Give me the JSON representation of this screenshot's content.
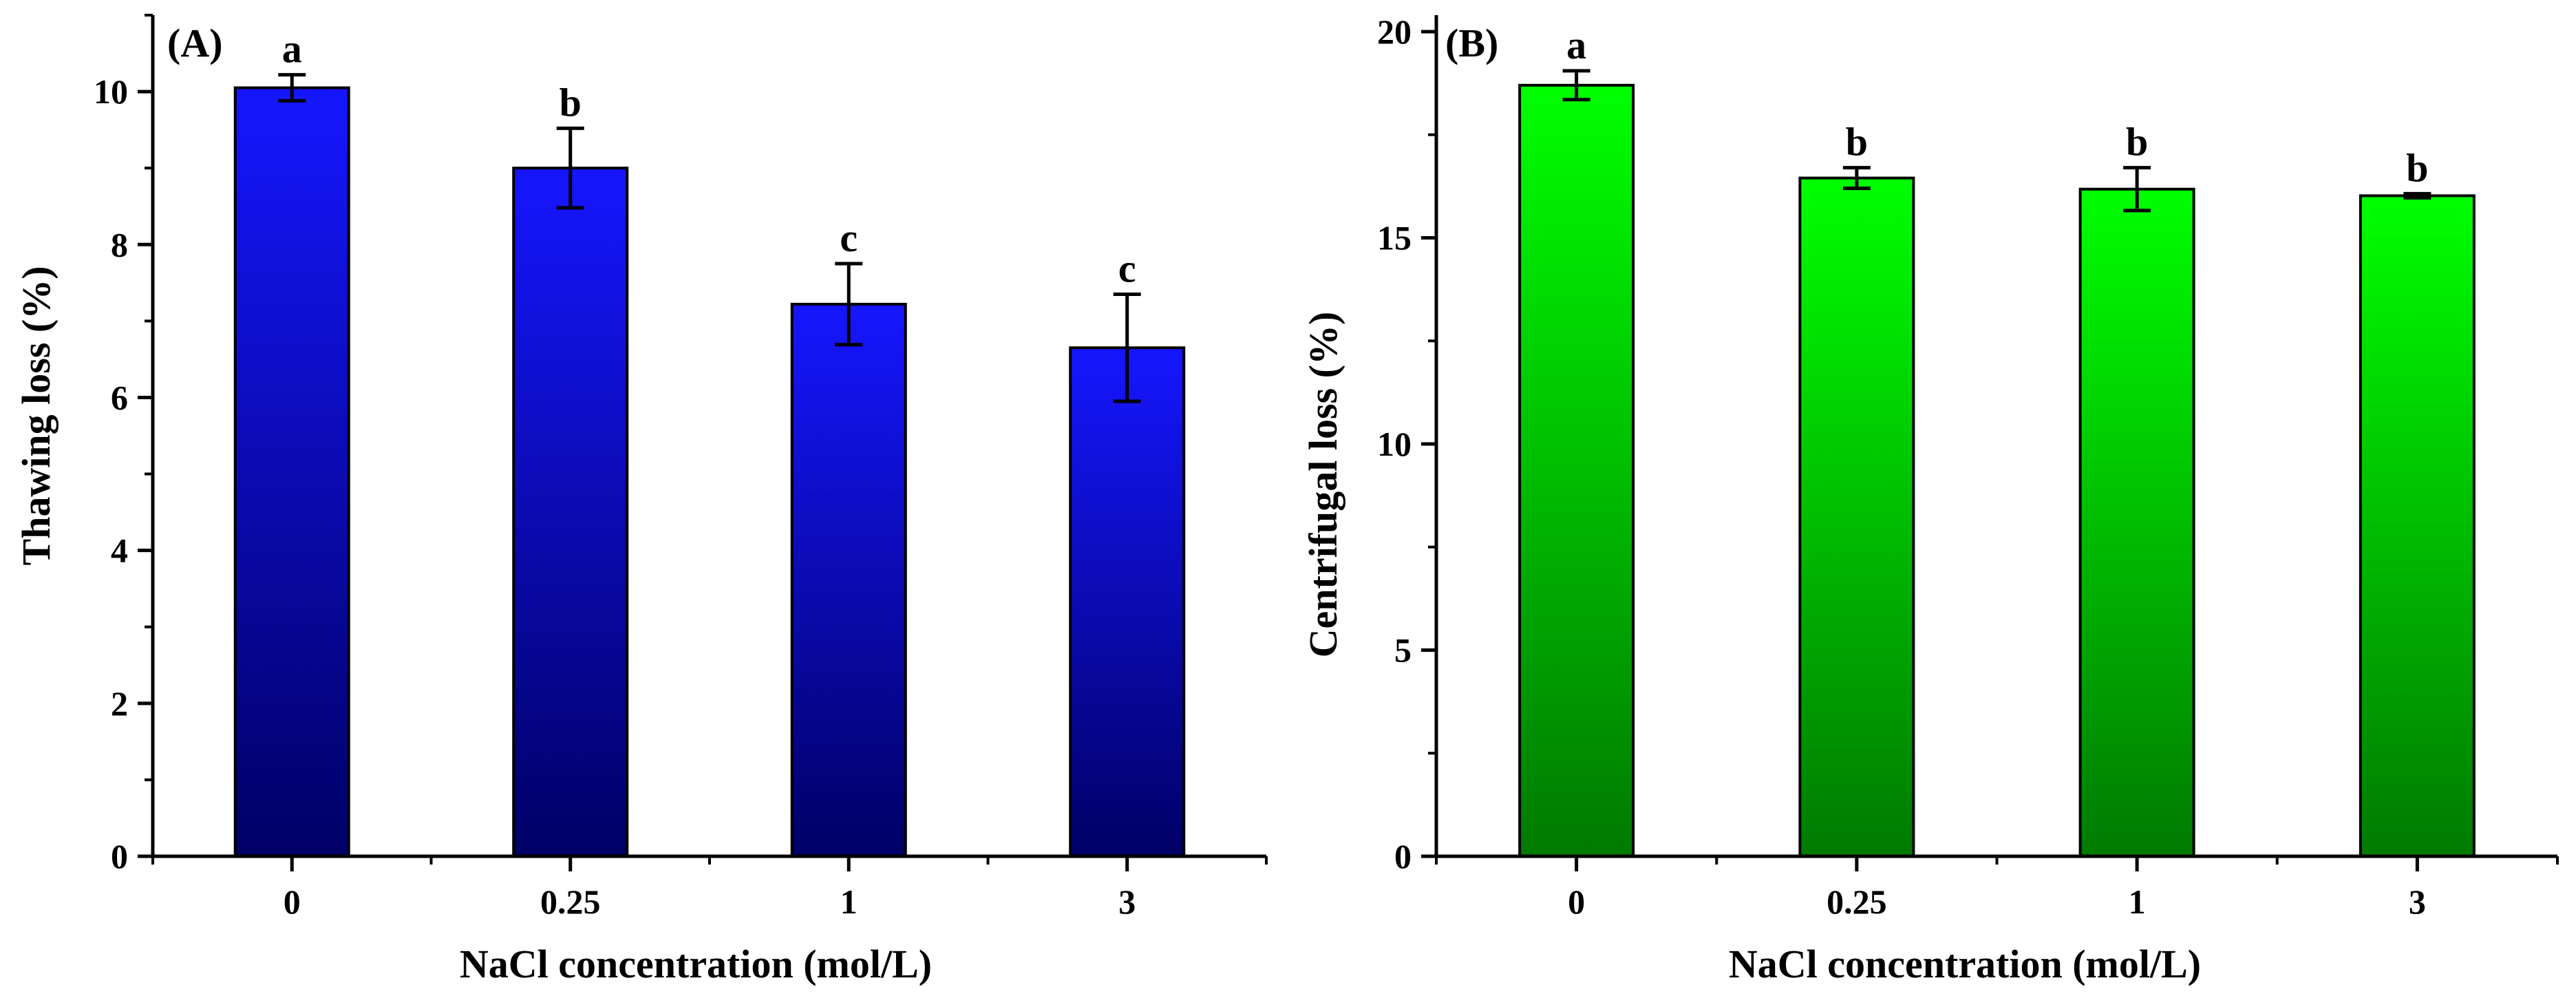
{
  "colors": {
    "panelA_top": "#1616ff",
    "panelA_bottom": "#000066",
    "panelB_top": "#00ff00",
    "panelB_bottom": "#007a00",
    "axis": "#000000"
  },
  "chart_data": [
    {
      "type": "bar",
      "panel": "A",
      "panel_label": "(A)",
      "title": "",
      "xlabel": "NaCl concentration (mol/L)",
      "ylabel": "Thawing loss (%)",
      "categories": [
        "0",
        "0.25",
        "1",
        "3"
      ],
      "values": [
        10.05,
        9.0,
        7.22,
        6.65
      ],
      "errors": [
        0.17,
        0.52,
        0.53,
        0.7
      ],
      "significance": [
        "a",
        "b",
        "c",
        "c"
      ],
      "ylim": [
        0,
        11
      ],
      "yticks": [
        0,
        2,
        4,
        6,
        8,
        10
      ],
      "ytick_labels": [
        "0",
        "2",
        "4",
        "6",
        "8",
        "10"
      ],
      "y_minor_step": 1,
      "gradient": [
        "#1616ff",
        "#000066"
      ]
    },
    {
      "type": "bar",
      "panel": "B",
      "panel_label": "(B)",
      "title": "",
      "xlabel": "NaCl concentration (mol/L)",
      "ylabel": "Centrifugal loss (%)",
      "categories": [
        "0",
        "0.25",
        "1",
        "3"
      ],
      "values": [
        18.7,
        16.45,
        16.18,
        16.02
      ],
      "errors": [
        0.35,
        0.25,
        0.52,
        0.05
      ],
      "significance": [
        "a",
        "b",
        "b",
        "b"
      ],
      "ylim": [
        0,
        20.4
      ],
      "yticks": [
        0,
        5,
        10,
        15,
        20
      ],
      "ytick_labels": [
        "0",
        "5",
        "10",
        "15",
        "20"
      ],
      "y_minor_step": 2.5,
      "gradient": [
        "#00ff00",
        "#007a00"
      ]
    }
  ]
}
